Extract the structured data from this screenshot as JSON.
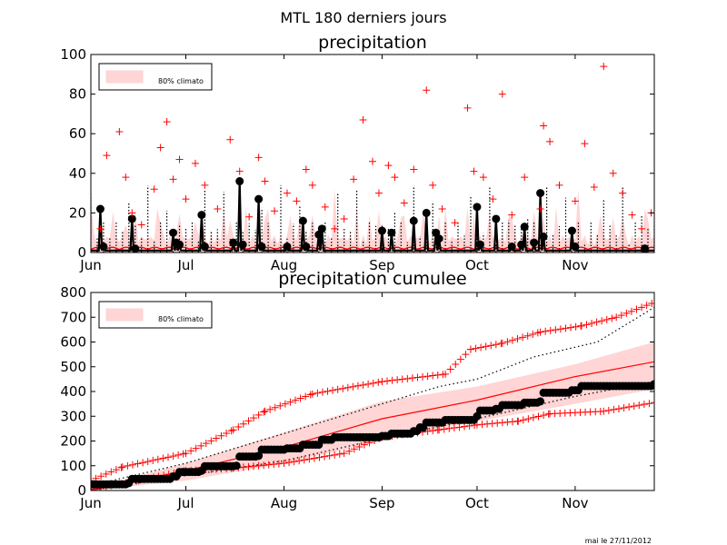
{
  "figure": {
    "suptitle": "MTL 180 derniers jours",
    "footer": "mai le 27/11/2012"
  },
  "colors": {
    "accent": "#ff0000",
    "band": "#ffd5d5",
    "obs": "#000000"
  },
  "chart_data": [
    {
      "type": "line",
      "title": "precipitation",
      "x_unit": "day index (Jun 1 = 0)",
      "xlim": [
        0,
        178
      ],
      "ylim": [
        0,
        100
      ],
      "yticks": [
        0,
        20,
        40,
        60,
        80,
        100
      ],
      "xtick_labels": [
        {
          "label": "Jun",
          "x": 0
        },
        {
          "label": "Jul",
          "x": 30
        },
        {
          "label": "Aug",
          "x": 61
        },
        {
          "label": "Sep",
          "x": 92
        },
        {
          "label": "Oct",
          "x": 122
        },
        {
          "label": "Nov",
          "x": 153
        }
      ],
      "legend": {
        "label": "80% climato",
        "position": "top-left"
      },
      "grid": false,
      "series": [
        {
          "style": "black line with dots",
          "points": [
            [
              3,
              22
            ],
            [
              4,
              3
            ],
            [
              13,
              17
            ],
            [
              14,
              2
            ],
            [
              26,
              10
            ],
            [
              27,
              5
            ],
            [
              28,
              4
            ],
            [
              35,
              19
            ],
            [
              36,
              3
            ],
            [
              45,
              5
            ],
            [
              47,
              36
            ],
            [
              48,
              4
            ],
            [
              53,
              27
            ],
            [
              54,
              3
            ],
            [
              62,
              3
            ],
            [
              67,
              16
            ],
            [
              68,
              3
            ],
            [
              72,
              9
            ],
            [
              73,
              12
            ],
            [
              92,
              11
            ],
            [
              95,
              10
            ],
            [
              102,
              16
            ],
            [
              106,
              20
            ],
            [
              109,
              10
            ],
            [
              110,
              7
            ],
            [
              122,
              23
            ],
            [
              123,
              4
            ],
            [
              128,
              17
            ],
            [
              133,
              3
            ],
            [
              136,
              4
            ],
            [
              137,
              13
            ],
            [
              140,
              5
            ],
            [
              142,
              30
            ],
            [
              143,
              8
            ],
            [
              152,
              11
            ],
            [
              153,
              3
            ],
            [
              175,
              2
            ]
          ]
        },
        {
          "style": "red plus markers",
          "points": [
            [
              3,
              12
            ],
            [
              5,
              49
            ],
            [
              9,
              61
            ],
            [
              11,
              38
            ],
            [
              13,
              20
            ],
            [
              16,
              14
            ],
            [
              20,
              32
            ],
            [
              22,
              53
            ],
            [
              24,
              66
            ],
            [
              26,
              37
            ],
            [
              28,
              47
            ],
            [
              30,
              27
            ],
            [
              33,
              45
            ],
            [
              36,
              34
            ],
            [
              40,
              22
            ],
            [
              44,
              57
            ],
            [
              47,
              41
            ],
            [
              50,
              18
            ],
            [
              53,
              48
            ],
            [
              55,
              36
            ],
            [
              58,
              21
            ],
            [
              62,
              30
            ],
            [
              65,
              26
            ],
            [
              68,
              42
            ],
            [
              70,
              34
            ],
            [
              74,
              23
            ],
            [
              77,
              12
            ],
            [
              80,
              17
            ],
            [
              83,
              37
            ],
            [
              86,
              67
            ],
            [
              89,
              46
            ],
            [
              91,
              30
            ],
            [
              94,
              44
            ],
            [
              96,
              38
            ],
            [
              99,
              25
            ],
            [
              102,
              42
            ],
            [
              106,
              82
            ],
            [
              108,
              34
            ],
            [
              111,
              22
            ],
            [
              115,
              15
            ],
            [
              119,
              73
            ],
            [
              121,
              41
            ],
            [
              124,
              38
            ],
            [
              127,
              27
            ],
            [
              130,
              80
            ],
            [
              133,
              19
            ],
            [
              137,
              38
            ],
            [
              142,
              22
            ],
            [
              143,
              64
            ],
            [
              145,
              56
            ],
            [
              148,
              34
            ],
            [
              153,
              26
            ],
            [
              156,
              55
            ],
            [
              159,
              33
            ],
            [
              162,
              94
            ],
            [
              165,
              40
            ],
            [
              168,
              30
            ],
            [
              171,
              19
            ],
            [
              174,
              12
            ],
            [
              177,
              20
            ]
          ]
        }
      ]
    },
    {
      "type": "line",
      "title": "precipitation cumulee",
      "x_unit": "day index (Jun 1 = 0)",
      "xlim": [
        0,
        178
      ],
      "ylim": [
        0,
        800
      ],
      "yticks": [
        0,
        100,
        200,
        300,
        400,
        500,
        600,
        700,
        800
      ],
      "xtick_labels": [
        {
          "label": "Jun",
          "x": 0
        },
        {
          "label": "Jul",
          "x": 30
        },
        {
          "label": "Aug",
          "x": 61
        },
        {
          "label": "Sep",
          "x": 92
        },
        {
          "label": "Oct",
          "x": 122
        },
        {
          "label": "Nov",
          "x": 153
        }
      ],
      "legend": {
        "label": "80% climato",
        "position": "top-left"
      },
      "grid": false,
      "series": [
        {
          "style": "red line (climatological mean)",
          "points": [
            [
              0,
              0
            ],
            [
              30,
              80
            ],
            [
              61,
              175
            ],
            [
              92,
              290
            ],
            [
              122,
              365
            ],
            [
              153,
              460
            ],
            [
              178,
              520
            ]
          ]
        },
        {
          "style": "pink band upper (80%)",
          "points": [
            [
              0,
              10
            ],
            [
              30,
              110
            ],
            [
              61,
              235
            ],
            [
              92,
              360
            ],
            [
              122,
              420
            ],
            [
              153,
              510
            ],
            [
              178,
              600
            ]
          ]
        },
        {
          "style": "pink band lower (80%)",
          "points": [
            [
              0,
              0
            ],
            [
              30,
              40
            ],
            [
              61,
              110
            ],
            [
              92,
              200
            ],
            [
              122,
              280
            ],
            [
              153,
              350
            ],
            [
              178,
              410
            ]
          ]
        },
        {
          "style": "black dots (observed cumulative)",
          "points": [
            [
              0,
              25
            ],
            [
              12,
              30
            ],
            [
              13,
              47
            ],
            [
              26,
              57
            ],
            [
              28,
              75
            ],
            [
              35,
              80
            ],
            [
              36,
              98
            ],
            [
              46,
              100
            ],
            [
              47,
              137
            ],
            [
              53,
              140
            ],
            [
              54,
              165
            ],
            [
              62,
              170
            ],
            [
              67,
              185
            ],
            [
              73,
              205
            ],
            [
              77,
              215
            ],
            [
              92,
              220
            ],
            [
              95,
              230
            ],
            [
              102,
              240
            ],
            [
              104,
              255
            ],
            [
              106,
              275
            ],
            [
              112,
              285
            ],
            [
              122,
              300
            ],
            [
              123,
              323
            ],
            [
              128,
              330
            ],
            [
              130,
              345
            ],
            [
              137,
              355
            ],
            [
              142,
              360
            ],
            [
              143,
              395
            ],
            [
              152,
              405
            ],
            [
              155,
              422
            ],
            [
              178,
              430
            ]
          ]
        },
        {
          "style": "red plus upper envelope",
          "points": [
            [
              0,
              40
            ],
            [
              10,
              95
            ],
            [
              30,
              150
            ],
            [
              45,
              245
            ],
            [
              55,
              320
            ],
            [
              70,
              390
            ],
            [
              92,
              440
            ],
            [
              112,
              470
            ],
            [
              120,
              570
            ],
            [
              130,
              595
            ],
            [
              142,
              640
            ],
            [
              155,
              665
            ],
            [
              166,
              700
            ],
            [
              178,
              760
            ]
          ]
        },
        {
          "style": "red plus lower envelope",
          "points": [
            [
              0,
              5
            ],
            [
              15,
              40
            ],
            [
              30,
              80
            ],
            [
              45,
              90
            ],
            [
              61,
              110
            ],
            [
              80,
              150
            ],
            [
              92,
              215
            ],
            [
              110,
              245
            ],
            [
              122,
              265
            ],
            [
              135,
              280
            ],
            [
              145,
              310
            ],
            [
              162,
              320
            ],
            [
              178,
              355
            ]
          ]
        },
        {
          "style": "black dotted upper",
          "points": [
            [
              0,
              20
            ],
            [
              30,
              110
            ],
            [
              61,
              230
            ],
            [
              92,
              350
            ],
            [
              110,
              420
            ],
            [
              122,
              450
            ],
            [
              140,
              540
            ],
            [
              160,
              600
            ],
            [
              178,
              740
            ]
          ]
        },
        {
          "style": "black dotted lower",
          "points": [
            [
              0,
              0
            ],
            [
              30,
              60
            ],
            [
              61,
              120
            ],
            [
              92,
              210
            ],
            [
              122,
              290
            ],
            [
              153,
              380
            ],
            [
              178,
              440
            ]
          ]
        }
      ]
    }
  ]
}
